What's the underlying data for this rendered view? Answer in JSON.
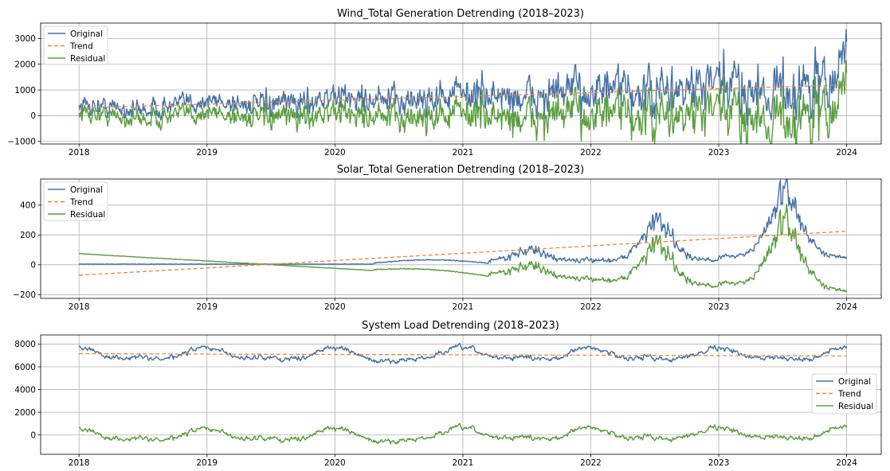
{
  "chart_data": [
    {
      "type": "line",
      "title": "Wind_Total Generation Detrending (2018–2023)",
      "x_range": [
        2017.7,
        2024.27
      ],
      "ylim": [
        -1100,
        3600
      ],
      "x_ticks": [
        "2018",
        "2019",
        "2020",
        "2021",
        "2022",
        "2023",
        "2024"
      ],
      "y_ticks": [
        "−1000",
        "0",
        "1000",
        "2000",
        "3000"
      ],
      "y_tick_values": [
        -1000,
        0,
        1000,
        2000,
        3000
      ],
      "grid": true,
      "legend_position": "upper-left",
      "series": [
        {
          "name": "Original",
          "color": "#4572a7",
          "style": "solid",
          "trend_start": 300,
          "trend_end": 1200,
          "seasonal_amp": 120,
          "noise_start": 260,
          "noise_end": 900,
          "spike_end": 3350
        },
        {
          "name": "Trend",
          "color": "#ee8a3a",
          "style": "dashed",
          "values_start": 300,
          "values_end": 1200
        },
        {
          "name": "Residual",
          "color": "#5a9e3e",
          "style": "solid"
        }
      ]
    },
    {
      "type": "line",
      "title": "Solar_Total Generation Detrending (2018–2023)",
      "x_range": [
        2017.7,
        2024.27
      ],
      "ylim": [
        -225,
        575
      ],
      "x_ticks": [
        "2018",
        "2019",
        "2020",
        "2021",
        "2022",
        "2023",
        "2024"
      ],
      "y_ticks": [
        "−200",
        "0",
        "200",
        "400"
      ],
      "y_tick_values": [
        -200,
        0,
        200,
        400
      ],
      "grid": true,
      "legend_position": "upper-left",
      "series": [
        {
          "name": "Original",
          "color": "#4572a7",
          "style": "solid"
        },
        {
          "name": "Trend",
          "color": "#ee8a3a",
          "style": "dashed",
          "values_start": -70,
          "values_end": 225
        },
        {
          "name": "Residual",
          "color": "#5a9e3e",
          "style": "solid"
        }
      ]
    },
    {
      "type": "line",
      "title": "System Load Detrending (2018–2023)",
      "x_range": [
        2017.7,
        2024.27
      ],
      "ylim": [
        -1700,
        8800
      ],
      "x_ticks": [
        "2018",
        "2019",
        "2020",
        "2021",
        "2022",
        "2023",
        "2024"
      ],
      "y_ticks": [
        "0",
        "2000",
        "4000",
        "6000",
        "8000"
      ],
      "y_tick_values": [
        0,
        2000,
        4000,
        6000,
        8000
      ],
      "grid": true,
      "legend_position": "center-right",
      "series": [
        {
          "name": "Original",
          "color": "#4572a7",
          "style": "solid",
          "mean": 7050
        },
        {
          "name": "Trend",
          "color": "#ee8a3a",
          "style": "dashed",
          "values_start": 7150,
          "values_end": 6950
        },
        {
          "name": "Residual",
          "color": "#5a9e3e",
          "style": "solid"
        }
      ]
    }
  ]
}
